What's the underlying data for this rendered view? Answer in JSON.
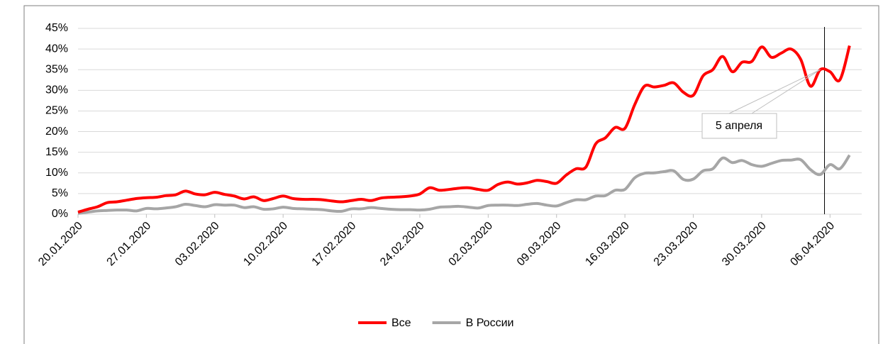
{
  "chart_data": {
    "type": "line",
    "categories": [
      "20.01.2020",
      null,
      null,
      null,
      null,
      null,
      null,
      "27.01.2020",
      null,
      null,
      null,
      null,
      null,
      null,
      "03.02.2020",
      null,
      null,
      null,
      null,
      null,
      null,
      "10.02.2020",
      null,
      null,
      null,
      null,
      null,
      null,
      "17.02.2020",
      null,
      null,
      null,
      null,
      null,
      null,
      "24.02.2020",
      null,
      null,
      null,
      null,
      null,
      null,
      "02.03.2020",
      null,
      null,
      null,
      null,
      null,
      null,
      "09.03.2020",
      null,
      null,
      null,
      null,
      null,
      null,
      "16.03.2020",
      null,
      null,
      null,
      null,
      null,
      null,
      "23.03.2020",
      null,
      null,
      null,
      null,
      null,
      null,
      "30.03.2020",
      null,
      null,
      null,
      null,
      null,
      null,
      "06.04.2020",
      null,
      null
    ],
    "series": [
      {
        "name": "Все",
        "color": "#ff0000",
        "values": [
          0.5,
          1.2,
          1.8,
          2.8,
          3.0,
          3.4,
          3.8,
          4.0,
          4.1,
          4.5,
          4.7,
          5.6,
          4.9,
          4.7,
          5.3,
          4.8,
          4.4,
          3.7,
          4.2,
          3.3,
          3.8,
          4.4,
          3.8,
          3.6,
          3.6,
          3.5,
          3.2,
          3.0,
          3.3,
          3.6,
          3.3,
          3.9,
          4.1,
          4.2,
          4.4,
          4.9,
          6.4,
          5.8,
          6.0,
          6.3,
          6.4,
          6.0,
          5.8,
          7.2,
          7.8,
          7.3,
          7.6,
          8.2,
          7.9,
          7.5,
          9.5,
          11.0,
          11.4,
          17.0,
          18.5,
          21.0,
          20.8,
          26.5,
          31.0,
          30.8,
          31.2,
          31.8,
          29.5,
          28.8,
          33.5,
          35.0,
          38.2,
          34.5,
          36.8,
          37.0,
          40.5,
          38.0,
          39.0,
          40.0,
          37.5,
          31.0,
          35.0,
          34.5,
          32.5,
          40.8
        ]
      },
      {
        "name": "В России",
        "color": "#a6a6a6",
        "values": [
          0.2,
          0.5,
          0.8,
          0.9,
          1.0,
          1.0,
          0.8,
          1.4,
          1.3,
          1.5,
          1.8,
          2.4,
          2.1,
          1.8,
          2.3,
          2.2,
          2.2,
          1.6,
          1.8,
          1.2,
          1.3,
          1.7,
          1.4,
          1.3,
          1.2,
          1.1,
          0.8,
          0.7,
          1.3,
          1.3,
          1.6,
          1.4,
          1.2,
          1.1,
          1.1,
          1.0,
          1.2,
          1.7,
          1.8,
          1.9,
          1.7,
          1.5,
          2.1,
          2.2,
          2.2,
          2.1,
          2.4,
          2.6,
          2.2,
          2.0,
          2.8,
          3.5,
          3.5,
          4.4,
          4.5,
          5.8,
          6.0,
          8.8,
          9.9,
          10.0,
          10.3,
          10.5,
          8.4,
          8.5,
          10.5,
          11.0,
          13.6,
          12.5,
          13.0,
          12.0,
          11.6,
          12.3,
          13.0,
          13.1,
          13.2,
          10.8,
          9.6,
          12.0,
          11.0,
          14.3
        ]
      }
    ],
    "ylim": [
      0,
      45
    ],
    "yticks": [
      {
        "value": 0,
        "label": "0%"
      },
      {
        "value": 5,
        "label": "5%"
      },
      {
        "value": 10,
        "label": "10%"
      },
      {
        "value": 15,
        "label": "15%"
      },
      {
        "value": 20,
        "label": "20%"
      },
      {
        "value": 25,
        "label": "25%"
      },
      {
        "value": 30,
        "label": "30%"
      },
      {
        "value": 35,
        "label": "35%"
      },
      {
        "value": 40,
        "label": "40%"
      },
      {
        "value": 45,
        "label": "45%"
      }
    ],
    "grid": true,
    "legend": "bottom",
    "annotation": "5 апреля"
  }
}
